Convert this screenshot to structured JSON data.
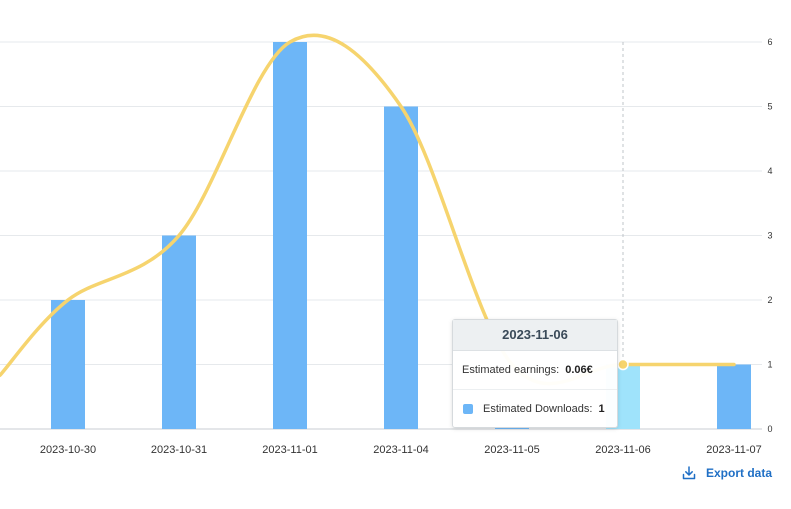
{
  "chart_data": {
    "type": "bar",
    "categories": [
      "2023-10-30",
      "2023-10-31",
      "2023-11-01",
      "2023-11-04",
      "2023-11-05",
      "2023-11-06",
      "2023-11-07"
    ],
    "series": [
      {
        "name": "Estimated Downloads",
        "type": "bar",
        "color": "#6db6f7",
        "values": [
          2,
          3,
          6,
          5,
          0,
          1,
          1
        ]
      },
      {
        "name": "Estimated earnings",
        "type": "line",
        "color": "#f6d46e",
        "values": [
          0.12,
          0.18,
          0.36,
          0.3,
          0.06,
          0.06,
          0.06
        ]
      }
    ],
    "yticks": [
      "0",
      "1",
      "2",
      "3",
      "4",
      "5",
      "6"
    ],
    "ylim": [
      0,
      6
    ],
    "grid": true,
    "legend": "none",
    "highlight_color": "#9fe3fb"
  },
  "tooltip": {
    "date": "2023-11-06",
    "earnings_label": "Estimated earnings:",
    "earnings_value": "0.06€",
    "downloads_label": "Estimated Downloads:",
    "downloads_value": "1",
    "swatch_color": "#6db6f7"
  },
  "export_label": "Export data",
  "export_icon": "download-icon"
}
